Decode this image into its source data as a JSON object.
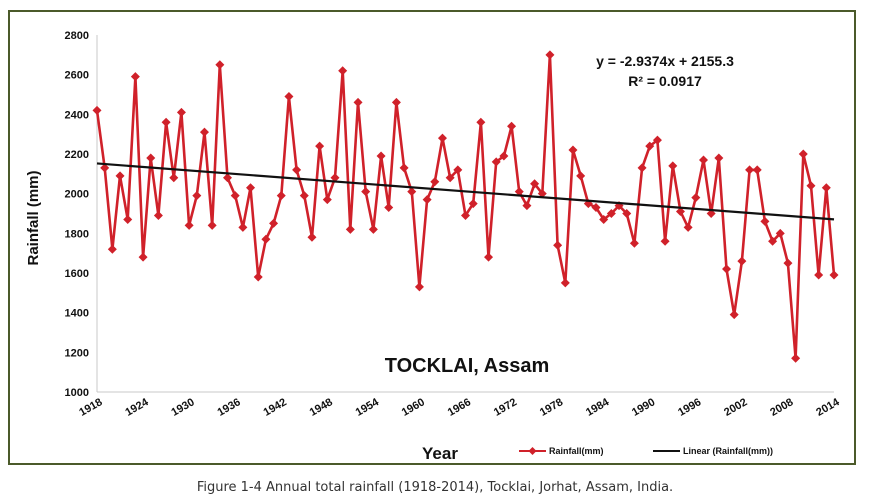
{
  "caption": "Figure 1-4  Annual total rainfall (1918-2014), Tocklai, Jorhat, Assam, India.",
  "chart_data": {
    "type": "line",
    "xlabel": "Year",
    "ylabel": "Rainfall (mm)",
    "annotation": "TOCKLAI, Assam",
    "equation": "y = -2.9374x + 2155.3",
    "r_squared": "R² = 0.0917",
    "ylim": [
      1000,
      2800
    ],
    "xlim": [
      1918,
      2014
    ],
    "y_ticks": [
      1000,
      1200,
      1400,
      1600,
      1800,
      2000,
      2200,
      2400,
      2600,
      2800
    ],
    "x_ticks": [
      "1918",
      "1924",
      "1930",
      "1936",
      "1942",
      "1948",
      "1954",
      "1960",
      "1966",
      "1972",
      "1978",
      "1984",
      "1990",
      "1996",
      "2002",
      "2008",
      "2014"
    ],
    "grid": false,
    "legend_position": "bottom-right",
    "series": [
      {
        "name": "Rainfall(mm)",
        "color": "#d0212a",
        "marker": "diamond",
        "x": [
          1918,
          1919,
          1920,
          1921,
          1922,
          1923,
          1924,
          1925,
          1926,
          1927,
          1928,
          1929,
          1930,
          1931,
          1932,
          1933,
          1934,
          1935,
          1936,
          1937,
          1938,
          1939,
          1940,
          1941,
          1942,
          1943,
          1944,
          1945,
          1946,
          1947,
          1948,
          1949,
          1950,
          1951,
          1952,
          1953,
          1954,
          1955,
          1956,
          1957,
          1958,
          1959,
          1960,
          1961,
          1962,
          1963,
          1964,
          1965,
          1966,
          1967,
          1968,
          1969,
          1970,
          1971,
          1972,
          1973,
          1974,
          1975,
          1976,
          1977,
          1978,
          1979,
          1980,
          1981,
          1982,
          1983,
          1984,
          1985,
          1986,
          1987,
          1988,
          1989,
          1990,
          1991,
          1992,
          1993,
          1994,
          1995,
          1996,
          1997,
          1998,
          1999,
          2000,
          2001,
          2002,
          2003,
          2004,
          2005,
          2006,
          2007,
          2008,
          2009,
          2010,
          2011,
          2012,
          2013,
          2014
        ],
        "values": [
          2420,
          2130,
          1720,
          2090,
          1870,
          2590,
          1680,
          2180,
          1890,
          2360,
          2080,
          2410,
          1840,
          1990,
          2310,
          1840,
          2650,
          2080,
          1990,
          1830,
          2030,
          1580,
          1770,
          1850,
          1990,
          2490,
          2120,
          1990,
          1780,
          2240,
          1970,
          2080,
          2620,
          1820,
          2460,
          2010,
          1820,
          2190,
          1930,
          2460,
          2130,
          2010,
          1530,
          1970,
          2060,
          2280,
          2080,
          2120,
          1890,
          1950,
          2360,
          1680,
          2160,
          2190,
          2340,
          2010,
          1940,
          2050,
          2000,
          2700,
          1740,
          1550,
          2220,
          2090,
          1950,
          1930,
          1870,
          1900,
          1940,
          1900,
          1750,
          2130,
          2240,
          2270,
          1760,
          2140,
          1910,
          1830,
          1980,
          2170,
          1900,
          2180,
          1620,
          1390,
          1660,
          2120,
          2120,
          1860,
          1760,
          1800,
          1650,
          1170,
          2200,
          2040,
          1590,
          2030,
          1590
        ]
      },
      {
        "name": "Linear (Rainfall(mm))",
        "color": "#111111",
        "x": [
          1918,
          2014
        ],
        "values": [
          2152.4,
          1870.4
        ]
      }
    ]
  }
}
